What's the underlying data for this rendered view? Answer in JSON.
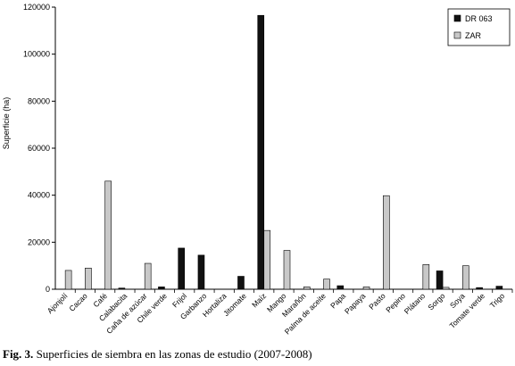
{
  "caption": {
    "label": "Fig. 3.",
    "text": "Superficies de siembra en las zonas de estudio (2007-2008)"
  },
  "chart_data": {
    "type": "bar",
    "ylabel": "Superficie (ha)",
    "ylim": [
      0,
      120000
    ],
    "yticks": [
      0,
      20000,
      40000,
      60000,
      80000,
      100000,
      120000
    ],
    "grid": false,
    "legend_position": "top-right",
    "categories": [
      "Ajonjolí",
      "Cacao",
      "Café",
      "Calabacita",
      "Caña de azúcar",
      "Chile verde",
      "Frijol",
      "Garbanzo",
      "Hortaliza",
      "Jitomate",
      "Maíz",
      "Mango",
      "Marañón",
      "Palma de aceite",
      "Papa",
      "Papaya",
      "Pasto",
      "Pepino",
      "Plátano",
      "Sorgo",
      "Soya",
      "Tomate verde",
      "Trigo"
    ],
    "series": [
      {
        "name": "DR 063",
        "color": "#111111",
        "values": [
          0,
          0,
          0,
          500,
          0,
          1000,
          17500,
          14500,
          0,
          5500,
          116500,
          0,
          0,
          0,
          1500,
          0,
          0,
          0,
          0,
          7800,
          0,
          700,
          1300
        ]
      },
      {
        "name": "ZAR",
        "color": "#c8c8c8",
        "values": [
          8000,
          9000,
          46000,
          0,
          11000,
          0,
          0,
          0,
          0,
          0,
          25000,
          16500,
          1000,
          4300,
          0,
          1000,
          39800,
          0,
          10500,
          800,
          10000,
          0,
          0
        ]
      }
    ]
  }
}
